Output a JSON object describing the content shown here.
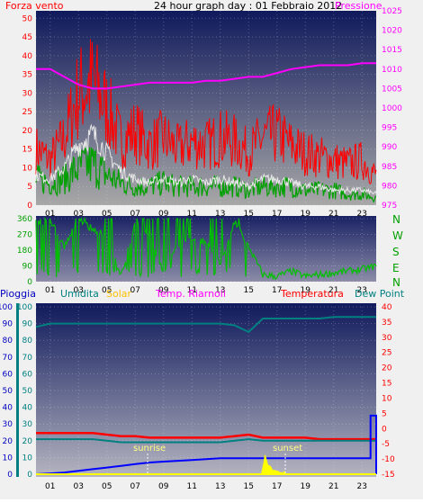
{
  "title": "24 hour graph day : 01 Febbraio 2012",
  "top_chart": {
    "left_label": "Forza vento",
    "right_label": "Pressione",
    "left_ticks": [
      "0",
      "5",
      "10",
      "15",
      "20",
      "25",
      "30",
      "35",
      "40",
      "45",
      "50"
    ],
    "right_ticks": [
      "975",
      "980",
      "985",
      "990",
      "995",
      "1000",
      "1005",
      "1010",
      "1015",
      "1020",
      "1025"
    ],
    "x_ticks": [
      "01",
      "03",
      "05",
      "07",
      "09",
      "11",
      "13",
      "15",
      "17",
      "19",
      "21",
      "23"
    ]
  },
  "dir_chart": {
    "left_ticks": [
      "0",
      "90",
      "180",
      "270",
      "360"
    ],
    "right_ticks": [
      "N",
      "E",
      "S",
      "W",
      "N"
    ],
    "x_ticks": [
      "01",
      "03",
      "05",
      "07",
      "09",
      "11",
      "13",
      "15",
      "17",
      "19",
      "21",
      "23"
    ]
  },
  "legend": {
    "pioggia": "Pioggia",
    "umidita": "Umidita",
    "solar": "Solar",
    "temp_riarnoli": "Temp. Riarnoli",
    "temperatura": "Temperatura",
    "dew_point": "Dew Point"
  },
  "bottom_chart": {
    "left_ticks": [
      "0",
      "10",
      "20",
      "30",
      "40",
      "50",
      "60",
      "70",
      "80",
      "90",
      "100"
    ],
    "right_ticks": [
      "-15",
      "-10",
      "-5",
      "0",
      "5",
      "10",
      "15",
      "20",
      "25",
      "30",
      "35",
      "40"
    ],
    "x_ticks": [
      "01",
      "03",
      "05",
      "07",
      "09",
      "11",
      "13",
      "15",
      "17",
      "19",
      "21",
      "23"
    ],
    "sunrise": "sunrise",
    "sunset": "sunset"
  },
  "colors": {
    "wind_gust": "#ff0000",
    "wind_avg": "#00a000",
    "wind_white": "#e8e8e8",
    "pressure": "#ff00ff",
    "direction": "#00c000",
    "humidity": "#008080",
    "solar": "#ffff00",
    "temp_riarnoli": "#ff00ff",
    "temperature": "#ff0000",
    "dew_point": "#008080",
    "rain": "#0000ff"
  },
  "chart_data": [
    {
      "type": "line",
      "xlabel": "",
      "ylabel": "Forza vento",
      "y2label": "Pressione",
      "x": [
        0,
        1,
        2,
        3,
        4,
        5,
        6,
        7,
        8,
        9,
        10,
        11,
        12,
        13,
        14,
        15,
        16,
        17,
        18,
        19,
        20,
        21,
        22,
        23,
        24
      ],
      "ylim": [
        0,
        52
      ],
      "y2lim": [
        975,
        1025
      ],
      "series": [
        {
          "name": "Forza vento",
          "axis": "left",
          "values": [
            15,
            12,
            18,
            30,
            33,
            26,
            17,
            20,
            16,
            18,
            15,
            17,
            16,
            18,
            17,
            14,
            18,
            19,
            16,
            14,
            13,
            12,
            11,
            12,
            8
          ]
        },
        {
          "name": "",
          "axis": "left",
          "values": [
            7,
            6,
            7,
            10,
            11,
            8,
            6,
            5,
            5,
            6,
            5,
            5,
            5,
            5,
            5,
            4,
            5,
            5,
            5,
            4,
            4,
            4,
            3,
            3,
            2
          ]
        },
        {
          "name": "",
          "axis": "left",
          "values": [
            8,
            7,
            10,
            16,
            19,
            14,
            9,
            7,
            6,
            7,
            6,
            7,
            6,
            7,
            6,
            5,
            7,
            7,
            6,
            5,
            5,
            4,
            4,
            4,
            3
          ]
        },
        {
          "name": "Pressione",
          "axis": "right",
          "values": [
            1010,
            1010,
            1008,
            1006,
            1005,
            1005,
            1005.5,
            1006,
            1006.5,
            1006.5,
            1006.5,
            1006.5,
            1007,
            1007,
            1007.5,
            1008,
            1008,
            1009,
            1010,
            1010.5,
            1011,
            1011,
            1011,
            1011.5,
            1011.5
          ]
        }
      ]
    },
    {
      "type": "line",
      "xlabel": "",
      "ylabel": "",
      "x": [
        0,
        1,
        2,
        3,
        4,
        5,
        6,
        7,
        8,
        9,
        10,
        11,
        12,
        13,
        14,
        15,
        16,
        17,
        18,
        19,
        20,
        21,
        22,
        23,
        24
      ],
      "ylim": [
        0,
        360
      ],
      "series": [
        {
          "name": "",
          "values": [
            340,
            350,
            200,
            350,
            300,
            280,
            30,
            340,
            250,
            60,
            200,
            260,
            220,
            100,
            340,
            200,
            40,
            30,
            60,
            30,
            40,
            50,
            60,
            70,
            90
          ]
        }
      ]
    },
    {
      "type": "line",
      "xlabel": "",
      "ylabel": "",
      "x": [
        0,
        1,
        2,
        3,
        4,
        5,
        6,
        7,
        8,
        9,
        10,
        11,
        12,
        13,
        14,
        15,
        16,
        17,
        18,
        19,
        20,
        21,
        22,
        23,
        24
      ],
      "ylim": [
        0,
        100
      ],
      "y2lim": [
        -15,
        40
      ],
      "series": [
        {
          "name": "Umidita",
          "axis": "left",
          "values": [
            88,
            90,
            90,
            90,
            90,
            90,
            90,
            90,
            90,
            90,
            90,
            90,
            90,
            90,
            89,
            85,
            93,
            93,
            93,
            93,
            93,
            94,
            94,
            94,
            94
          ]
        },
        {
          "name": "Temperatura",
          "axis": "right",
          "values": [
            -1.5,
            -1.5,
            -1.5,
            -1.5,
            -1.5,
            -2,
            -2.5,
            -2.5,
            -3,
            -3,
            -3,
            -3,
            -3,
            -3,
            -2.5,
            -2,
            -3,
            -3,
            -3,
            -3,
            -3.5,
            -3.5,
            -3.5,
            -3.5,
            -3.5
          ]
        },
        {
          "name": "Dew Point",
          "axis": "right",
          "values": [
            -3.5,
            -3.5,
            -3.5,
            -3.5,
            -3.5,
            -4,
            -4.5,
            -4.5,
            -4.5,
            -4.5,
            -4.5,
            -4.5,
            -4.5,
            -4.5,
            -4,
            -3.5,
            -4,
            -4,
            -4,
            -4,
            -4,
            -4,
            -4,
            -4,
            -4
          ]
        },
        {
          "name": "Pioggia",
          "axis": "left",
          "values": [
            0,
            0.5,
            1,
            2,
            3,
            4,
            5,
            6,
            7,
            7.5,
            8,
            8.5,
            9,
            9.5,
            9.5,
            9.5,
            9.5,
            9.5,
            9.5,
            9.5,
            9.5,
            9.5,
            9.5,
            9.5,
            35
          ]
        },
        {
          "name": "Solar",
          "axis": "left",
          "values": [
            0,
            0,
            0,
            0,
            0,
            0,
            0,
            0,
            0,
            0,
            0,
            0,
            0,
            0,
            0,
            0,
            5,
            2,
            1,
            0,
            0,
            0,
            0,
            0,
            0
          ]
        }
      ]
    }
  ]
}
